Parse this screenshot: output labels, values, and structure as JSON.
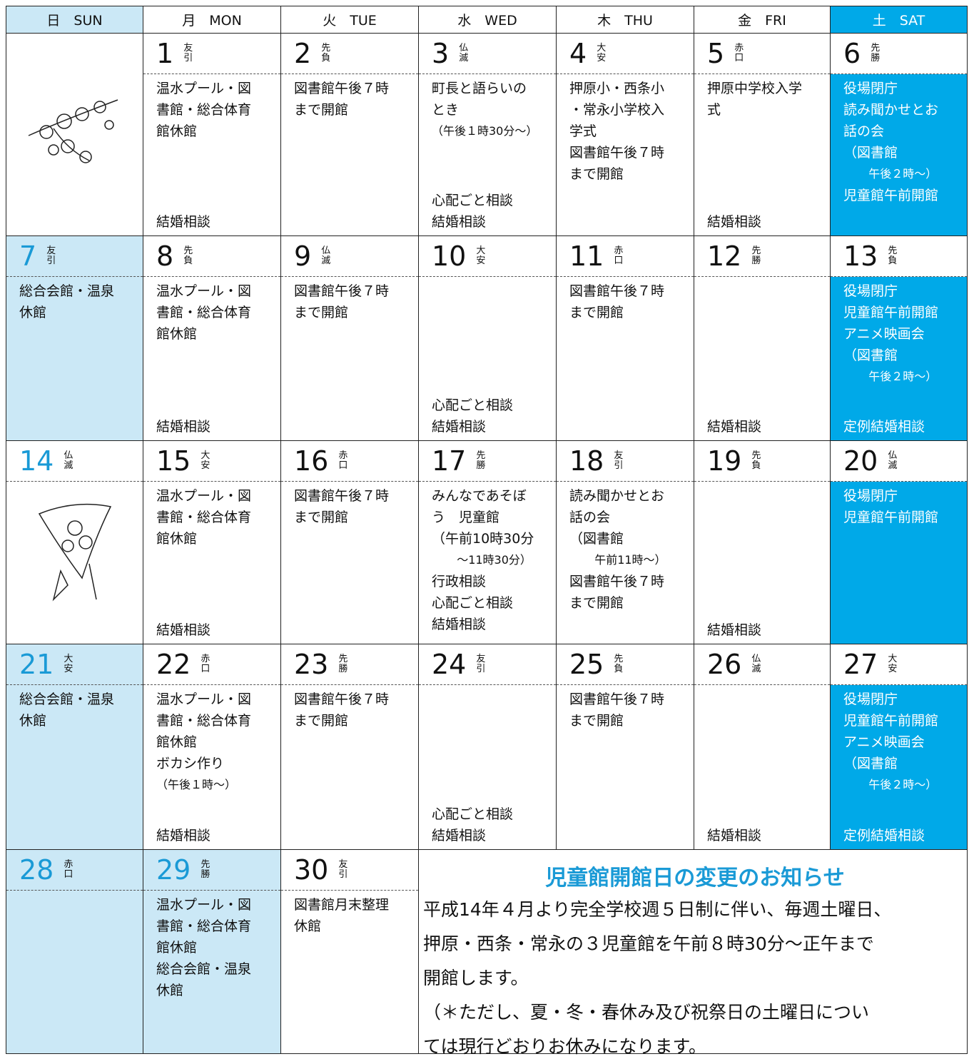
{
  "header": {
    "days": [
      "日　SUN",
      "月　MON",
      "火　TUE",
      "水　WED",
      "木　THU",
      "金　FRI",
      "土　SAT"
    ]
  },
  "weeks": [
    [
      null,
      {
        "day": 1,
        "rokuyo": "友引",
        "events": [
          "温水プール・図",
          "書館・総合体育",
          "館休館"
        ],
        "bottom": [
          "結婚相談"
        ]
      },
      {
        "day": 2,
        "rokuyo": "先負",
        "events": [
          "図書館午後７時",
          "まで開館"
        ],
        "bottom": []
      },
      {
        "day": 3,
        "rokuyo": "仏滅",
        "events": [
          "町長と語らいの",
          "とき",
          "（午後１時30分～）"
        ],
        "bottom": [
          "心配ごと相談",
          "結婚相談"
        ]
      },
      {
        "day": 4,
        "rokuyo": "大安",
        "events": [
          "押原小・西条小",
          "・常永小学校入",
          "学式",
          "図書館午後７時",
          "まで開館"
        ],
        "bottom": []
      },
      {
        "day": 5,
        "rokuyo": "赤口",
        "events": [
          "押原中学校入学",
          "式"
        ],
        "bottom": [
          "結婚相談"
        ]
      },
      {
        "day": 6,
        "rokuyo": "先勝",
        "events": [
          "役場閉庁",
          "読み聞かせとお",
          "話の会",
          "（図書館",
          "午後２時～）",
          "児童館午前開館"
        ],
        "bottom": []
      }
    ],
    [
      {
        "day": 7,
        "rokuyo": "友引",
        "events": [
          "総合会館・温泉",
          "休館"
        ],
        "bottom": []
      },
      {
        "day": 8,
        "rokuyo": "先負",
        "events": [
          "温水プール・図",
          "書館・総合体育",
          "館休館"
        ],
        "bottom": [
          "結婚相談"
        ]
      },
      {
        "day": 9,
        "rokuyo": "仏滅",
        "events": [
          "図書館午後７時",
          "まで開館"
        ],
        "bottom": []
      },
      {
        "day": 10,
        "rokuyo": "大安",
        "events": [],
        "bottom": [
          "心配ごと相談",
          "結婚相談"
        ]
      },
      {
        "day": 11,
        "rokuyo": "赤口",
        "events": [
          "図書館午後７時",
          "まで開館"
        ],
        "bottom": []
      },
      {
        "day": 12,
        "rokuyo": "先勝",
        "events": [],
        "bottom": [
          "結婚相談"
        ]
      },
      {
        "day": 13,
        "rokuyo": "先負",
        "events": [
          "役場閉庁",
          "児童館午前開館",
          "アニメ映画会",
          "（図書館",
          "午後２時～）"
        ],
        "bottom": [
          "定例結婚相談"
        ]
      }
    ],
    [
      {
        "day": 14,
        "rokuyo": "仏滅",
        "events": [],
        "bottom": []
      },
      {
        "day": 15,
        "rokuyo": "大安",
        "events": [
          "温水プール・図",
          "書館・総合体育",
          "館休館"
        ],
        "bottom": [
          "結婚相談"
        ]
      },
      {
        "day": 16,
        "rokuyo": "赤口",
        "events": [
          "図書館午後７時",
          "まで開館"
        ],
        "bottom": []
      },
      {
        "day": 17,
        "rokuyo": "先勝",
        "events": [
          "みんなであそぼ",
          "う　児童館",
          "（午前10時30分",
          "～11時30分）",
          "行政相談",
          "心配ごと相談",
          "結婚相談"
        ],
        "bottom": []
      },
      {
        "day": 18,
        "rokuyo": "友引",
        "events": [
          "読み聞かせとお",
          "話の会",
          "（図書館",
          "午前11時～）",
          "図書館午後７時",
          "まで開館"
        ],
        "bottom": []
      },
      {
        "day": 19,
        "rokuyo": "先負",
        "events": [],
        "bottom": [
          "結婚相談"
        ]
      },
      {
        "day": 20,
        "rokuyo": "仏滅",
        "events": [
          "役場閉庁",
          "児童館午前開館"
        ],
        "bottom": []
      }
    ],
    [
      {
        "day": 21,
        "rokuyo": "大安",
        "events": [
          "総合会館・温泉",
          "休館"
        ],
        "bottom": []
      },
      {
        "day": 22,
        "rokuyo": "赤口",
        "events": [
          "温水プール・図",
          "書館・総合体育",
          "館休館",
          "ボカシ作り",
          "（午後１時～）"
        ],
        "bottom": [
          "結婚相談"
        ]
      },
      {
        "day": 23,
        "rokuyo": "先勝",
        "events": [
          "図書館午後７時",
          "まで開館"
        ],
        "bottom": []
      },
      {
        "day": 24,
        "rokuyo": "友引",
        "events": [],
        "bottom": [
          "心配ごと相談",
          "結婚相談"
        ]
      },
      {
        "day": 25,
        "rokuyo": "先負",
        "events": [
          "図書館午後７時",
          "まで開館"
        ],
        "bottom": []
      },
      {
        "day": 26,
        "rokuyo": "仏滅",
        "events": [],
        "bottom": [
          "結婚相談"
        ]
      },
      {
        "day": 27,
        "rokuyo": "大安",
        "events": [
          "役場閉庁",
          "児童館午前開館",
          "アニメ映画会",
          "（図書館",
          "午後２時～）"
        ],
        "bottom": [
          "定例結婚相談"
        ]
      }
    ],
    [
      {
        "day": 28,
        "rokuyo": "赤口",
        "events": [],
        "bottom": []
      },
      {
        "day": 29,
        "rokuyo": "先勝",
        "events": [
          "温水プール・図",
          "書館・総合体育",
          "館休館",
          "総合会館・温泉",
          "休館"
        ],
        "bottom": []
      },
      {
        "day": 30,
        "rokuyo": "友引",
        "events": [
          "図書館月末整理",
          "休館"
        ],
        "bottom": []
      }
    ]
  ],
  "notice": {
    "title": "児童館開館日の変更のお知らせ",
    "lines": [
      "平成14年４月より完全学校週５日制に伴い、毎週土曜日、",
      "押原・西条・常永の３児童館を午前８時30分～正午まで",
      "開館します。",
      "（＊ただし、夏・冬・春休み及び祝祭日の土曜日につい",
      "ては現行どおりお休みになります。"
    ]
  }
}
